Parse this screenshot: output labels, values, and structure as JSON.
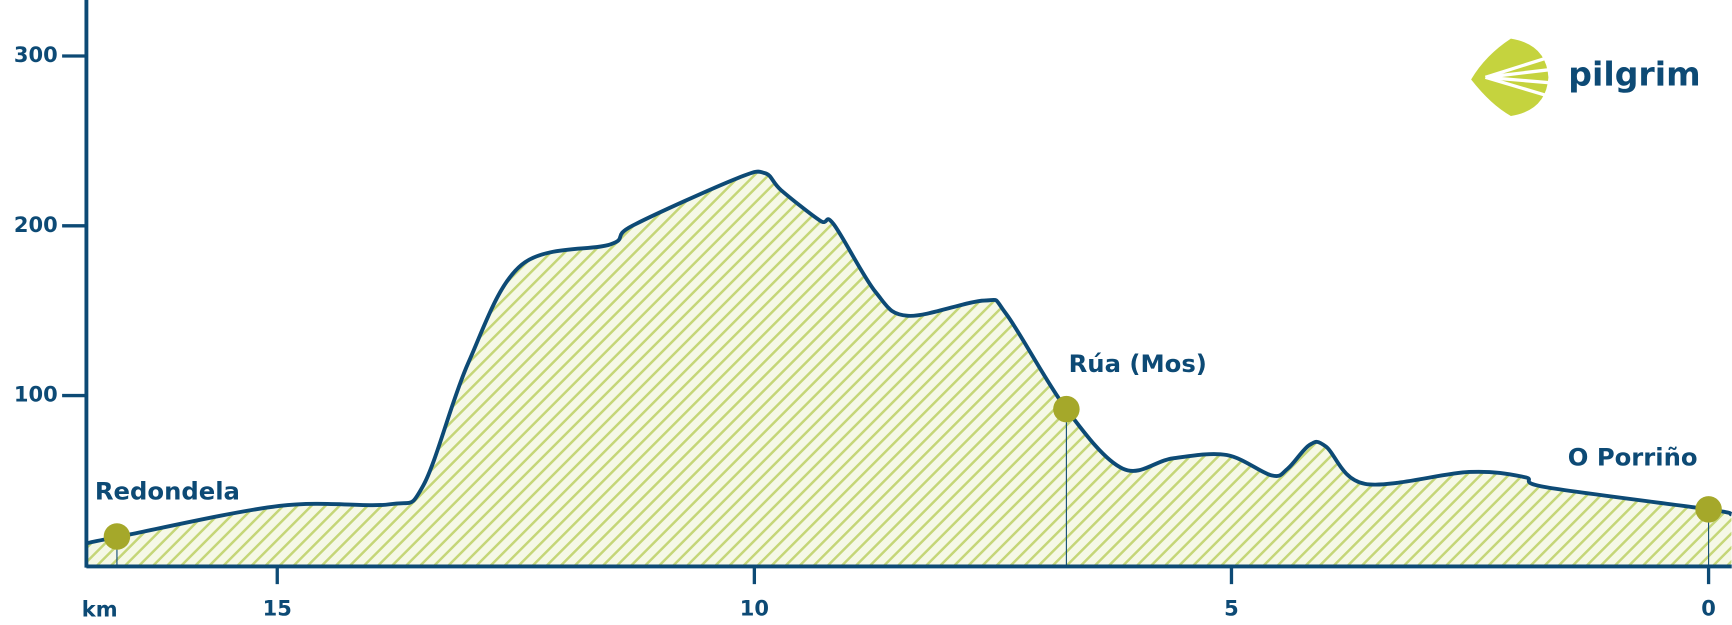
{
  "brand": "pilgrim",
  "chart_data": {
    "type": "area",
    "x_label": "km",
    "x": [
      17.0,
      16.65,
      14.98,
      13.82,
      13.47,
      13.0,
      12.44,
      11.51,
      11.28,
      10.18,
      9.89,
      9.72,
      9.31,
      9.17,
      8.73,
      8.39,
      7.59,
      7.36,
      6.73,
      6.14,
      5.62,
      5.05,
      4.58,
      4.41,
      4.18,
      4.01,
      3.6,
      2.51,
      1.93,
      1.7,
      0,
      -0.24
    ],
    "values": [
      13,
      17,
      35,
      36,
      47,
      119,
      177,
      189,
      200,
      228,
      231,
      221,
      203,
      201,
      161,
      147,
      156,
      148,
      92,
      57,
      63,
      65,
      53,
      57,
      71,
      70,
      48,
      55,
      52,
      46,
      33,
      30
    ],
    "color": "#0d4a75",
    "fill_color": "#c5d678",
    "xlim": [
      17.0,
      -0.24
    ],
    "ylim": [
      0,
      333
    ],
    "xticks": [
      15,
      10,
      5,
      0
    ],
    "yticks": [
      100,
      200,
      300
    ],
    "markers": [
      {
        "name": "Redondela",
        "x": 16.68,
        "y": 17
      },
      {
        "name": "Rúa (Mos)",
        "x": 6.73,
        "y": 92
      },
      {
        "name": "O Porriño",
        "x": 0,
        "y": 33
      }
    ],
    "marker_color": "#a5a82a"
  }
}
